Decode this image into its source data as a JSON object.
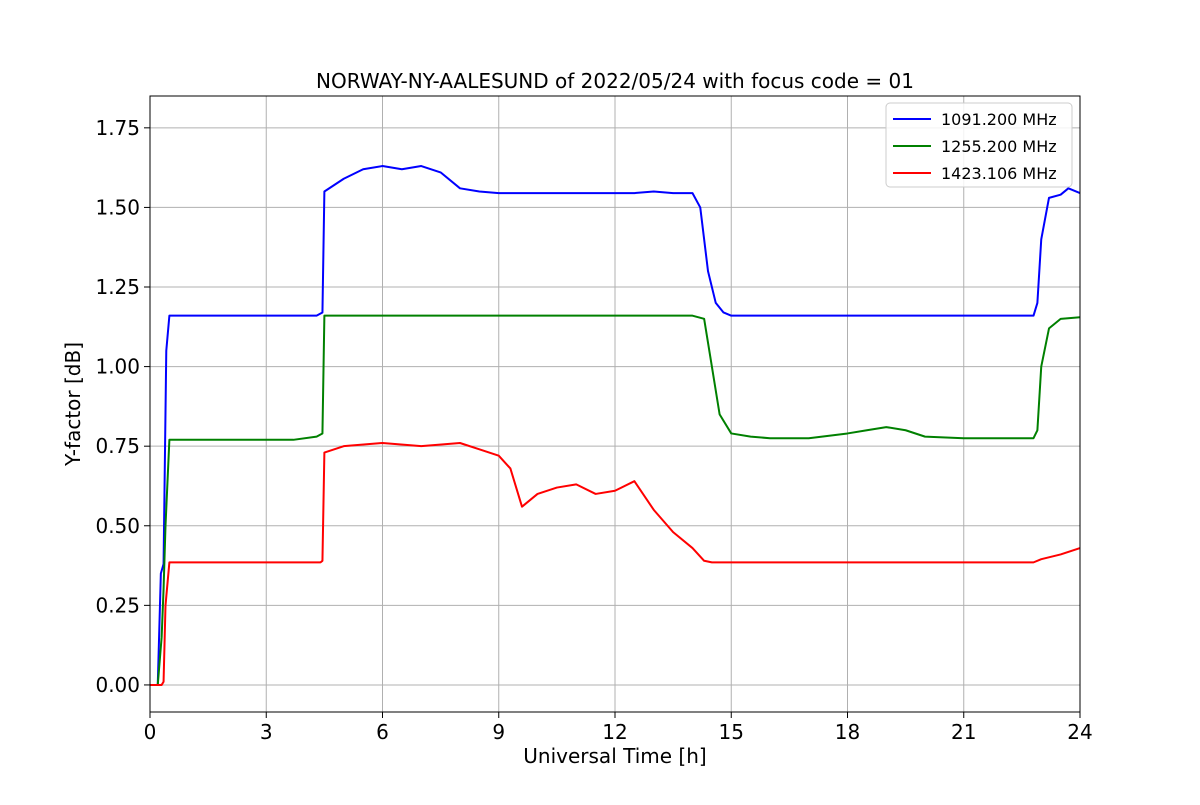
{
  "chart_data": {
    "type": "line",
    "title": "NORWAY-NY-AALESUND of 2022/05/24 with focus code = 01",
    "xlabel": "Universal Time [h]",
    "ylabel": "Y-factor [dB]",
    "xlim": [
      0,
      24
    ],
    "ylim": [
      -0.085,
      1.85
    ],
    "xticks": [
      0,
      3,
      6,
      9,
      12,
      15,
      18,
      21,
      24
    ],
    "yticks": [
      0.0,
      0.25,
      0.5,
      0.75,
      1.0,
      1.25,
      1.5,
      1.75
    ],
    "ytick_labels": [
      "0.00",
      "0.25",
      "0.50",
      "0.75",
      "1.00",
      "1.25",
      "1.50",
      "1.75"
    ],
    "grid": true,
    "legend_position": "top-right",
    "series": [
      {
        "name": "1091.200 MHz",
        "color": "#0000ff",
        "x": [
          0.0,
          0.2,
          0.28,
          0.35,
          0.42,
          0.5,
          0.8,
          1.0,
          2.0,
          3.0,
          4.3,
          4.45,
          4.5,
          5.0,
          5.5,
          6.0,
          6.5,
          7.0,
          7.5,
          8.0,
          8.5,
          9.0,
          10.0,
          11.0,
          12.0,
          12.5,
          13.0,
          13.5,
          14.0,
          14.2,
          14.4,
          14.6,
          14.8,
          15.0,
          15.5,
          16.0,
          17.0,
          18.0,
          19.0,
          20.0,
          21.0,
          22.0,
          22.8,
          22.9,
          23.0,
          23.2,
          23.5,
          23.7,
          24.0
        ],
        "y": [
          0.0,
          0.0,
          0.35,
          0.38,
          1.05,
          1.16,
          1.16,
          1.16,
          1.16,
          1.16,
          1.16,
          1.17,
          1.55,
          1.59,
          1.62,
          1.63,
          1.62,
          1.63,
          1.61,
          1.56,
          1.55,
          1.545,
          1.545,
          1.545,
          1.545,
          1.545,
          1.55,
          1.545,
          1.545,
          1.5,
          1.3,
          1.2,
          1.17,
          1.16,
          1.16,
          1.16,
          1.16,
          1.16,
          1.16,
          1.16,
          1.16,
          1.16,
          1.16,
          1.2,
          1.4,
          1.53,
          1.54,
          1.56,
          1.545
        ]
      },
      {
        "name": "1255.200 MHz",
        "color": "#008000",
        "x": [
          0.0,
          0.2,
          0.3,
          0.35,
          0.4,
          0.5,
          1.0,
          2.0,
          3.0,
          3.6,
          3.7,
          4.3,
          4.45,
          4.5,
          5.0,
          6.0,
          7.0,
          8.0,
          9.0,
          10.0,
          11.0,
          12.0,
          13.0,
          14.0,
          14.3,
          14.5,
          14.7,
          15.0,
          15.5,
          16.0,
          17.0,
          18.0,
          18.5,
          19.0,
          19.5,
          20.0,
          21.0,
          22.0,
          22.8,
          22.9,
          23.0,
          23.2,
          23.5,
          24.0
        ],
        "y": [
          0.0,
          0.0,
          0.15,
          0.3,
          0.5,
          0.77,
          0.77,
          0.77,
          0.77,
          0.77,
          0.77,
          0.78,
          0.79,
          1.16,
          1.16,
          1.16,
          1.16,
          1.16,
          1.16,
          1.16,
          1.16,
          1.16,
          1.16,
          1.16,
          1.15,
          1.0,
          0.85,
          0.79,
          0.78,
          0.775,
          0.775,
          0.79,
          0.8,
          0.81,
          0.8,
          0.78,
          0.775,
          0.775,
          0.775,
          0.8,
          1.0,
          1.12,
          1.15,
          1.155
        ]
      },
      {
        "name": "1423.106 MHz",
        "color": "#ff0000",
        "x": [
          0.0,
          0.3,
          0.35,
          0.4,
          0.5,
          1.0,
          2.0,
          3.0,
          4.0,
          4.4,
          4.45,
          4.5,
          5.0,
          6.0,
          7.0,
          8.0,
          8.5,
          9.0,
          9.3,
          9.6,
          10.0,
          10.5,
          11.0,
          11.5,
          12.0,
          12.5,
          13.0,
          13.5,
          14.0,
          14.3,
          14.5,
          15.0,
          16.0,
          17.0,
          18.0,
          19.0,
          20.0,
          21.0,
          22.0,
          22.8,
          23.0,
          23.5,
          24.0
        ],
        "y": [
          0.0,
          0.0,
          0.01,
          0.25,
          0.385,
          0.385,
          0.385,
          0.385,
          0.385,
          0.385,
          0.39,
          0.73,
          0.75,
          0.76,
          0.75,
          0.76,
          0.74,
          0.72,
          0.68,
          0.56,
          0.6,
          0.62,
          0.63,
          0.6,
          0.61,
          0.64,
          0.55,
          0.48,
          0.43,
          0.39,
          0.385,
          0.385,
          0.385,
          0.385,
          0.385,
          0.385,
          0.385,
          0.385,
          0.385,
          0.385,
          0.395,
          0.41,
          0.43
        ]
      }
    ]
  }
}
